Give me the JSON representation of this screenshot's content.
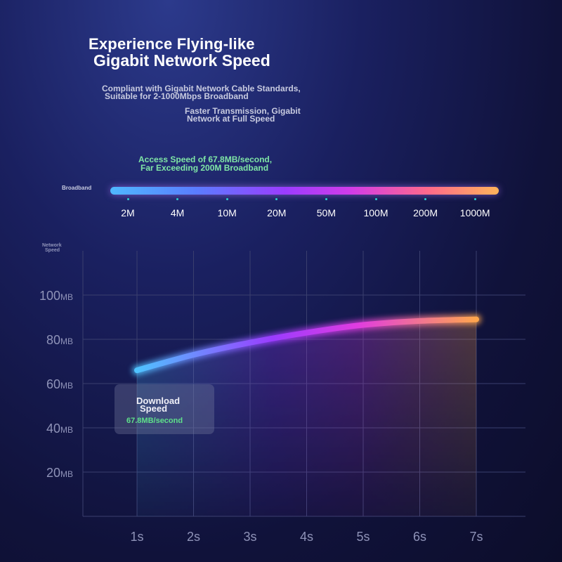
{
  "header": {
    "title_line1": "Experience Flying-like",
    "title_line2": "Gigabit Network Speed",
    "sub1_line1": "Compliant with Gigabit Network Cable Standards,",
    "sub1_line2": "Suitable for 2-1000Mbps Broadband",
    "sub2_line1": "Faster Transmission, Gigabit",
    "sub2_line2": "Network at Full Speed"
  },
  "broadband": {
    "note_line1": "Access Speed of 67.8MB/second,",
    "note_line2": "Far Exceeding 200M Broadband",
    "label": "Broadband",
    "speeds": [
      "2M",
      "4M",
      "10M",
      "20M",
      "50M",
      "100M",
      "200M",
      "1000M"
    ]
  },
  "tooltip": {
    "title_line1": "Download",
    "title_line2": "Speed",
    "value": "67.8MB/second"
  },
  "colors": {
    "grad_start": "#4fc3ff",
    "grad_mid1": "#9b3cff",
    "grad_mid2": "#e03ce0",
    "grad_end": "#ffa64d",
    "grid": "#3a3f6e",
    "tick_text": "#8f93b8"
  },
  "chart_data": {
    "type": "line",
    "ylabel_line1": "Network",
    "ylabel_line2": "Speed",
    "x": [
      "1s",
      "2s",
      "3s",
      "4s",
      "5s",
      "6s",
      "7s"
    ],
    "values": [
      66,
      73,
      78.5,
      83,
      86.5,
      88.3,
      89
    ],
    "yticks": [
      20,
      40,
      60,
      80,
      100
    ],
    "ytick_unit": "MB",
    "ylim": [
      0,
      120
    ],
    "series_name": "Download Speed"
  }
}
